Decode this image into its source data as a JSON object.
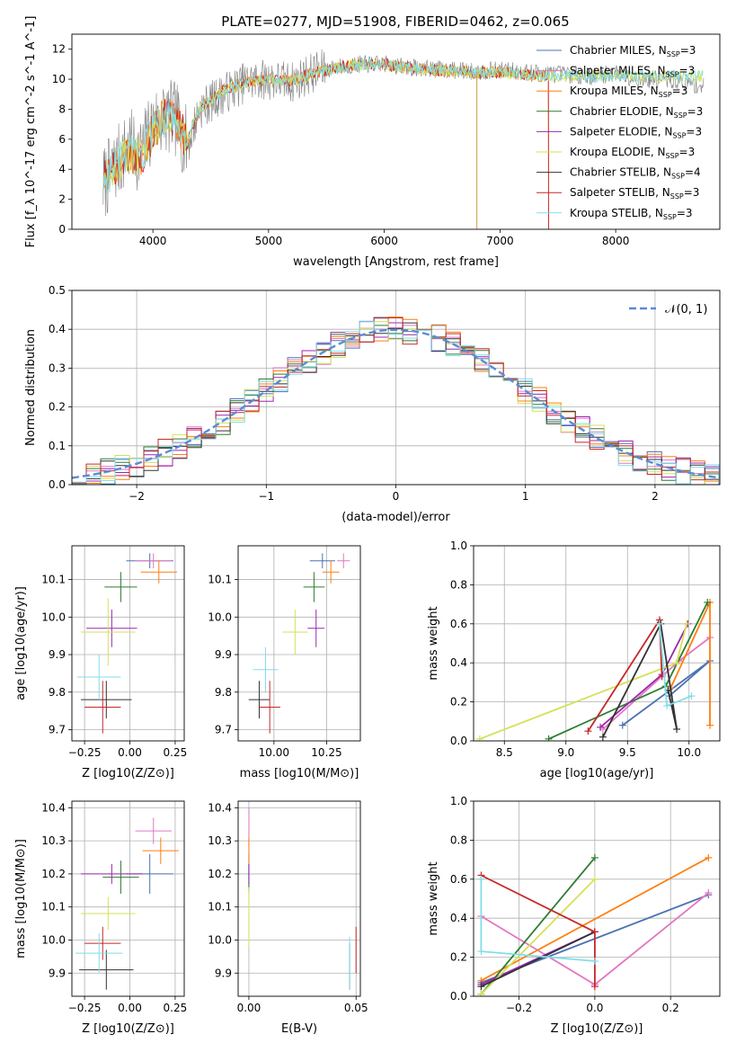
{
  "figure": {
    "title": "PLATE=0277, MJD=51908, FIBERID=0462, z=0.065"
  },
  "chart_data": [
    {
      "id": "spectrum",
      "type": "line",
      "xlabel": "wavelength [Angstrom, rest frame]",
      "ylabel": "Flux [f_λ 10^-17 erg cm^-2 s^-1 A^-1]",
      "xlim": [
        3300,
        8900
      ],
      "ylim": [
        0,
        13
      ],
      "xticks": [
        4000,
        5000,
        6000,
        7000,
        8000
      ],
      "yticks": [
        0,
        2,
        4,
        6,
        8,
        10,
        12
      ],
      "grid": false,
      "legend_position": "right",
      "observed_trend": {
        "x": [
          3570,
          3700,
          3800,
          3900,
          4000,
          4100,
          4200,
          4300,
          4400,
          4600,
          4800,
          5000,
          5200,
          5400,
          5600,
          5800,
          6000,
          6200,
          6400,
          6600,
          6800,
          7000,
          7200,
          7400,
          7600,
          7800,
          8000,
          8200,
          8400,
          8600,
          8750
        ],
        "y": [
          3.0,
          4.5,
          5.5,
          5.0,
          7.0,
          7.5,
          7.3,
          5.5,
          8.0,
          9.0,
          9.8,
          10.0,
          9.8,
          10.5,
          10.8,
          11.0,
          11.0,
          10.8,
          10.7,
          10.6,
          10.5,
          10.6,
          10.5,
          10.4,
          10.3,
          10.2,
          10.4,
          10.0,
          10.0,
          9.8,
          9.5
        ]
      },
      "model_trend": {
        "x": [
          3570,
          3700,
          3800,
          3900,
          4000,
          4100,
          4200,
          4300,
          4400,
          4600,
          4800,
          5000,
          5200,
          5400,
          5600,
          5800,
          6000,
          6200,
          6400,
          6600,
          6800,
          7000,
          7200,
          7400
        ],
        "y": [
          3.2,
          4.5,
          5.0,
          4.8,
          6.5,
          7.5,
          7.2,
          5.8,
          8.0,
          9.2,
          9.8,
          10.0,
          9.9,
          10.4,
          10.8,
          11.0,
          11.0,
          10.8,
          10.6,
          10.6,
          10.4,
          10.5,
          10.3,
          10.2
        ]
      },
      "series": [
        {
          "label_main": "Chabrier MILES, N",
          "label_sub": "SSP",
          "label_tail": "=3",
          "color": "#4c72b0"
        },
        {
          "label_main": "Salpeter MILES, N",
          "label_sub": "SSP",
          "label_tail": "=3",
          "color": "#e377c2"
        },
        {
          "label_main": "Kroupa MILES, N",
          "label_sub": "SSP",
          "label_tail": "=3",
          "color": "#ff7f0e"
        },
        {
          "label_main": "Chabrier ELODIE, N",
          "label_sub": "SSP",
          "label_tail": "=3",
          "color": "#2e7d32"
        },
        {
          "label_main": "Salpeter ELODIE, N",
          "label_sub": "SSP",
          "label_tail": "=3",
          "color": "#9c27b0"
        },
        {
          "label_main": "Kroupa ELODIE, N",
          "label_sub": "SSP",
          "label_tail": "=3",
          "color": "#d4e157"
        },
        {
          "label_main": "Chabrier STELIB, N",
          "label_sub": "SSP",
          "label_tail": "=4",
          "color": "#333333"
        },
        {
          "label_main": "Salpeter STELIB, N",
          "label_sub": "SSP",
          "label_tail": "=3",
          "color": "#c62828"
        },
        {
          "label_main": "Kroupa STELIB, N",
          "label_sub": "SSP",
          "label_tail": "=3",
          "color": "#80deea"
        }
      ]
    },
    {
      "id": "residual-histogram",
      "type": "line",
      "xlabel": "(data-model)/error",
      "ylabel": "Normed distribution",
      "xlim": [
        -2.5,
        2.5
      ],
      "ylim": [
        0,
        0.5
      ],
      "xticks": [
        -2,
        -1,
        0,
        1,
        2
      ],
      "xtick_labels": [
        "−2",
        "−1",
        "0",
        "1",
        "2"
      ],
      "yticks": [
        0.0,
        0.1,
        0.2,
        0.3,
        0.4,
        0.5
      ],
      "ytick_labels": [
        "0.0",
        "0.1",
        "0.2",
        "0.3",
        "0.4",
        "0.5"
      ],
      "grid": true,
      "legend_label": "𝒩(0, 1)",
      "legend_position": "top-right",
      "bin_width": 0.111,
      "bins_start": -2.5,
      "reference": {
        "type": "gaussian",
        "mean": 0,
        "sigma": 1,
        "color": "#5b8bd6"
      }
    },
    {
      "id": "age-vs-Z",
      "type": "scatter",
      "xlabel": "Z [log10(Z/Z⊙)]",
      "ylabel": "age [log10(age/yr)]",
      "xlim": [
        -0.32,
        0.3
      ],
      "ylim": [
        9.67,
        10.19
      ],
      "xticks": [
        -0.25,
        0.0,
        0.25
      ],
      "xtick_labels": [
        "−0.25",
        "0.00",
        "0.25"
      ],
      "yticks": [
        9.7,
        9.8,
        9.9,
        10.0,
        10.1
      ],
      "ytick_labels": [
        "9.7",
        "9.8",
        "9.9",
        "10.0",
        "10.1"
      ],
      "grid": true,
      "points": [
        {
          "x": 0.11,
          "y": 10.15,
          "xerr": 0.13,
          "yerr": 0.02,
          "color": "#4c72b0"
        },
        {
          "x": 0.13,
          "y": 10.15,
          "xerr": 0.1,
          "yerr": 0.02,
          "color": "#e377c2"
        },
        {
          "x": 0.16,
          "y": 10.12,
          "xerr": 0.1,
          "yerr": 0.03,
          "color": "#ff7f0e"
        },
        {
          "x": -0.05,
          "y": 10.08,
          "xerr": 0.09,
          "yerr": 0.04,
          "color": "#2e7d32"
        },
        {
          "x": -0.1,
          "y": 9.97,
          "xerr": 0.14,
          "yerr": 0.05,
          "color": "#9c27b0"
        },
        {
          "x": -0.12,
          "y": 9.96,
          "xerr": 0.15,
          "yerr": 0.09,
          "color": "#d4e157"
        },
        {
          "x": -0.13,
          "y": 9.78,
          "xerr": 0.14,
          "yerr": 0.05,
          "color": "#333333"
        },
        {
          "x": -0.15,
          "y": 9.76,
          "xerr": 0.1,
          "yerr": 0.07,
          "color": "#c62828"
        },
        {
          "x": -0.17,
          "y": 9.84,
          "xerr": 0.12,
          "yerr": 0.06,
          "color": "#80deea"
        }
      ]
    },
    {
      "id": "age-vs-mass",
      "type": "scatter",
      "xlabel": "mass [log10(M/M⊙)]",
      "ylabel": "",
      "xlim": [
        9.83,
        10.41
      ],
      "ylim": [
        9.67,
        10.19
      ],
      "xticks": [
        10.0,
        10.25
      ],
      "xtick_labels": [
        "10.00",
        "10.25"
      ],
      "yticks": [
        9.7,
        9.8,
        9.9,
        10.0,
        10.1
      ],
      "ytick_labels": [
        "9.7",
        "9.8",
        "9.9",
        "10.0",
        "10.1"
      ],
      "grid": true,
      "points": [
        {
          "x": 10.23,
          "y": 10.15,
          "xerr": 0.06,
          "yerr": 0.02,
          "color": "#4c72b0"
        },
        {
          "x": 10.33,
          "y": 10.15,
          "xerr": 0.03,
          "yerr": 0.02,
          "color": "#e377c2"
        },
        {
          "x": 10.27,
          "y": 10.12,
          "xerr": 0.04,
          "yerr": 0.03,
          "color": "#ff7f0e"
        },
        {
          "x": 10.19,
          "y": 10.08,
          "xerr": 0.05,
          "yerr": 0.04,
          "color": "#2e7d32"
        },
        {
          "x": 10.2,
          "y": 9.97,
          "xerr": 0.04,
          "yerr": 0.05,
          "color": "#9c27b0"
        },
        {
          "x": 10.1,
          "y": 9.96,
          "xerr": 0.06,
          "yerr": 0.06,
          "color": "#d4e157"
        },
        {
          "x": 9.93,
          "y": 9.78,
          "xerr": 0.05,
          "yerr": 0.05,
          "color": "#333333"
        },
        {
          "x": 9.98,
          "y": 9.76,
          "xerr": 0.05,
          "yerr": 0.07,
          "color": "#c62828"
        },
        {
          "x": 9.96,
          "y": 9.86,
          "xerr": 0.06,
          "yerr": 0.06,
          "color": "#80deea"
        }
      ]
    },
    {
      "id": "weight-vs-age",
      "type": "line",
      "xlabel": "age [log10(age/yr)]",
      "ylabel": "mass weight",
      "xlim": [
        8.25,
        10.25
      ],
      "ylim": [
        0,
        1.0
      ],
      "xticks": [
        8.5,
        9.0,
        9.5,
        10.0
      ],
      "xtick_labels": [
        "8.5",
        "9.0",
        "9.5",
        "10.0"
      ],
      "yticks": [
        0.0,
        0.2,
        0.4,
        0.6,
        0.8,
        1.0
      ],
      "ytick_labels": [
        "0.0",
        "0.2",
        "0.4",
        "0.6",
        "0.8",
        "1.0"
      ],
      "grid": true,
      "series": [
        {
          "color": "#4c72b0",
          "points": [
            [
              9.46,
              0.08
            ],
            [
              10.17,
              0.41
            ],
            [
              9.84,
              0.23
            ]
          ]
        },
        {
          "color": "#e377c2",
          "points": [
            [
              9.3,
              0.06
            ],
            [
              9.92,
              0.41
            ],
            [
              10.17,
              0.53
            ]
          ]
        },
        {
          "color": "#ff7f0e",
          "points": [
            [
              9.85,
              0.27
            ],
            [
              10.17,
              0.71
            ],
            [
              10.17,
              0.08
            ]
          ]
        },
        {
          "color": "#2e7d32",
          "points": [
            [
              8.86,
              0.01
            ],
            [
              9.81,
              0.28
            ],
            [
              10.15,
              0.71
            ]
          ]
        },
        {
          "color": "#9c27b0",
          "points": [
            [
              9.28,
              0.07
            ],
            [
              9.78,
              0.34
            ],
            [
              9.99,
              0.6
            ]
          ]
        },
        {
          "color": "#d4e157",
          "points": [
            [
              8.3,
              0.01
            ],
            [
              9.9,
              0.4
            ],
            [
              9.98,
              0.6
            ]
          ]
        },
        {
          "color": "#333333",
          "points": [
            [
              9.3,
              0.02
            ],
            [
              9.77,
              0.6
            ],
            [
              9.9,
              0.06
            ],
            [
              9.83,
              0.26
            ]
          ]
        },
        {
          "color": "#c62828",
          "points": [
            [
              9.18,
              0.05
            ],
            [
              9.76,
              0.62
            ],
            [
              9.78,
              0.33
            ]
          ]
        },
        {
          "color": "#80deea",
          "points": [
            [
              9.76,
              0.6
            ],
            [
              9.82,
              0.18
            ],
            [
              10.02,
              0.23
            ]
          ]
        }
      ]
    },
    {
      "id": "mass-vs-Z",
      "type": "scatter",
      "xlabel": "Z [log10(Z/Z⊙)]",
      "ylabel": "mass [log10(M/M⊙)]",
      "xlim": [
        -0.32,
        0.3
      ],
      "ylim": [
        9.83,
        10.42
      ],
      "xticks": [
        -0.25,
        0.0,
        0.25
      ],
      "xtick_labels": [
        "−0.25",
        "0.00",
        "0.25"
      ],
      "yticks": [
        9.9,
        10.0,
        10.1,
        10.2,
        10.3,
        10.4
      ],
      "ytick_labels": [
        "9.9",
        "10.0",
        "10.1",
        "10.2",
        "10.3",
        "10.4"
      ],
      "grid": true,
      "points": [
        {
          "x": 0.11,
          "y": 10.2,
          "xerr": 0.13,
          "yerr": 0.06,
          "color": "#4c72b0"
        },
        {
          "x": 0.13,
          "y": 10.33,
          "xerr": 0.1,
          "yerr": 0.04,
          "color": "#e377c2"
        },
        {
          "x": 0.17,
          "y": 10.27,
          "xerr": 0.1,
          "yerr": 0.04,
          "color": "#ff7f0e"
        },
        {
          "x": -0.05,
          "y": 10.19,
          "xerr": 0.1,
          "yerr": 0.05,
          "color": "#2e7d32"
        },
        {
          "x": -0.1,
          "y": 10.2,
          "xerr": 0.17,
          "yerr": 0.03,
          "color": "#9c27b0"
        },
        {
          "x": -0.12,
          "y": 10.08,
          "xerr": 0.15,
          "yerr": 0.05,
          "color": "#d4e157"
        },
        {
          "x": -0.13,
          "y": 9.91,
          "xerr": 0.15,
          "yerr": 0.06,
          "color": "#333333"
        },
        {
          "x": -0.15,
          "y": 9.99,
          "xerr": 0.1,
          "yerr": 0.05,
          "color": "#c62828"
        },
        {
          "x": -0.17,
          "y": 9.96,
          "xerr": 0.13,
          "yerr": 0.06,
          "color": "#80deea"
        }
      ]
    },
    {
      "id": "mass-vs-EBV",
      "type": "scatter",
      "xlabel": "E(B-V)",
      "ylabel": "",
      "xlim": [
        -0.005,
        0.052
      ],
      "ylim": [
        9.83,
        10.42
      ],
      "xticks": [
        0.0,
        0.05
      ],
      "xtick_labels": [
        "0.00",
        "0.05"
      ],
      "yticks": [
        9.9,
        10.0,
        10.1,
        10.2,
        10.3,
        10.4
      ],
      "ytick_labels": [
        "9.9",
        "10.0",
        "10.1",
        "10.2",
        "10.3",
        "10.4"
      ],
      "grid": true,
      "points": [
        {
          "x": 0.0,
          "y": 10.2,
          "xerr": 0,
          "yerr": 0.06,
          "color": "#4c72b0"
        },
        {
          "x": 0.0,
          "y": 10.34,
          "xerr": 0,
          "yerr": 0.06,
          "color": "#e377c2"
        },
        {
          "x": 0.0,
          "y": 10.27,
          "xerr": 0,
          "yerr": 0.04,
          "color": "#ff7f0e"
        },
        {
          "x": 0.0,
          "y": 10.19,
          "xerr": 0,
          "yerr": 0.04,
          "color": "#2e7d32"
        },
        {
          "x": 0.0,
          "y": 10.2,
          "xerr": 0,
          "yerr": 0.03,
          "color": "#9c27b0"
        },
        {
          "x": 0.0,
          "y": 10.07,
          "xerr": 0,
          "yerr": 0.09,
          "color": "#d4e157"
        },
        {
          "x": 0.047,
          "y": 9.92,
          "xerr": 0,
          "yerr": 0.07,
          "color": "#333333"
        },
        {
          "x": 0.05,
          "y": 9.97,
          "xerr": 0,
          "yerr": 0.07,
          "color": "#c62828"
        },
        {
          "x": 0.047,
          "y": 9.93,
          "xerr": 0,
          "yerr": 0.08,
          "color": "#80deea"
        }
      ]
    },
    {
      "id": "weight-vs-Z",
      "type": "line",
      "xlabel": "Z [log10(Z/Z⊙)]",
      "ylabel": "mass weight",
      "xlim": [
        -0.32,
        0.33
      ],
      "ylim": [
        0,
        1.0
      ],
      "xticks": [
        -0.2,
        0.0,
        0.2
      ],
      "xtick_labels": [
        "−0.2",
        "0.0",
        "0.2"
      ],
      "yticks": [
        0.0,
        0.2,
        0.4,
        0.6,
        0.8,
        1.0
      ],
      "ytick_labels": [
        "0.0",
        "0.2",
        "0.4",
        "0.6",
        "0.8",
        "1.0"
      ],
      "grid": true,
      "series": [
        {
          "color": "#4c72b0",
          "points": [
            [
              -0.3,
              0.07
            ],
            [
              0.3,
              0.52
            ]
          ]
        },
        {
          "color": "#e377c2",
          "points": [
            [
              -0.3,
              0.41
            ],
            [
              0.0,
              0.06
            ],
            [
              0.3,
              0.53
            ]
          ]
        },
        {
          "color": "#ff7f0e",
          "points": [
            [
              -0.3,
              0.08
            ],
            [
              0.3,
              0.71
            ]
          ]
        },
        {
          "color": "#2e7d32",
          "points": [
            [
              -0.3,
              0.01
            ],
            [
              0.0,
              0.71
            ]
          ]
        },
        {
          "color": "#9c27b0",
          "points": [
            [
              -0.3,
              0.06
            ],
            [
              0.0,
              0.33
            ]
          ]
        },
        {
          "color": "#d4e157",
          "points": [
            [
              -0.3,
              0.01
            ],
            [
              0.0,
              0.6
            ]
          ]
        },
        {
          "color": "#333333",
          "points": [
            [
              -0.3,
              0.05
            ],
            [
              0.0,
              0.33
            ]
          ]
        },
        {
          "color": "#c62828",
          "points": [
            [
              -0.3,
              0.62
            ],
            [
              0.0,
              0.33
            ],
            [
              0.0,
              0.05
            ]
          ]
        },
        {
          "color": "#80deea",
          "points": [
            [
              -0.3,
              0.6
            ],
            [
              -0.3,
              0.23
            ],
            [
              0.0,
              0.18
            ]
          ]
        }
      ]
    }
  ]
}
